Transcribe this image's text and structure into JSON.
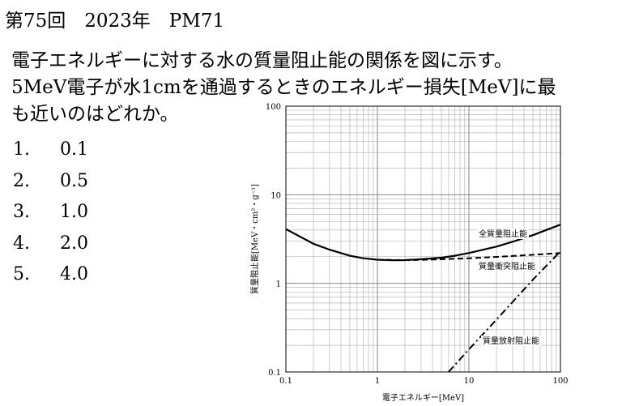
{
  "exam": {
    "header": "第75回　2023年　PM71"
  },
  "question": {
    "lines": [
      "電子エネルギーに対する水の質量阻止能の関係を図に示す。",
      "5MeV電子が水1cmを通過するときのエネルギー損失[MeV]に最",
      "も近いのはどれか。"
    ]
  },
  "choices": [
    {
      "num": "1.",
      "text": "0.1"
    },
    {
      "num": "2.",
      "text": "0.5"
    },
    {
      "num": "3.",
      "text": "1.0"
    },
    {
      "num": "4.",
      "text": "2.0"
    },
    {
      "num": "5.",
      "text": "4.0"
    }
  ],
  "chart_data": {
    "type": "line",
    "xscale": "log",
    "yscale": "log",
    "xlim": [
      0.1,
      100
    ],
    "ylim": [
      0.1,
      100
    ],
    "xlabel": "電子エネルギー[MeV]",
    "ylabel": "質量阻止能[MeV・cm²・g⁻¹]",
    "xticks": [
      "0.1",
      "1",
      "10",
      "100"
    ],
    "yticks": [
      "0.1",
      "1",
      "10",
      "100"
    ],
    "grid": true,
    "series": [
      {
        "name": "全質量阻止能",
        "style": "solid",
        "x": [
          0.1,
          0.2,
          0.3,
          0.5,
          0.7,
          1,
          1.5,
          2,
          3,
          5,
          7,
          10,
          20,
          30,
          50,
          70,
          100
        ],
        "y": [
          4.1,
          2.8,
          2.4,
          2.05,
          1.92,
          1.85,
          1.82,
          1.83,
          1.87,
          1.95,
          2.05,
          2.2,
          2.6,
          2.95,
          3.5,
          4.0,
          4.6
        ]
      },
      {
        "name": "質量衝突阻止能",
        "style": "dashed",
        "x": [
          1,
          2,
          3,
          5,
          7,
          10,
          20,
          50,
          100
        ],
        "y": [
          1.85,
          1.83,
          1.84,
          1.87,
          1.89,
          1.92,
          1.99,
          2.1,
          2.2
        ]
      },
      {
        "name": "質量放射阻止能",
        "style": "dashdot",
        "x": [
          6,
          10,
          20,
          50,
          100
        ],
        "y": [
          0.1,
          0.18,
          0.39,
          1.1,
          2.3
        ]
      }
    ]
  }
}
